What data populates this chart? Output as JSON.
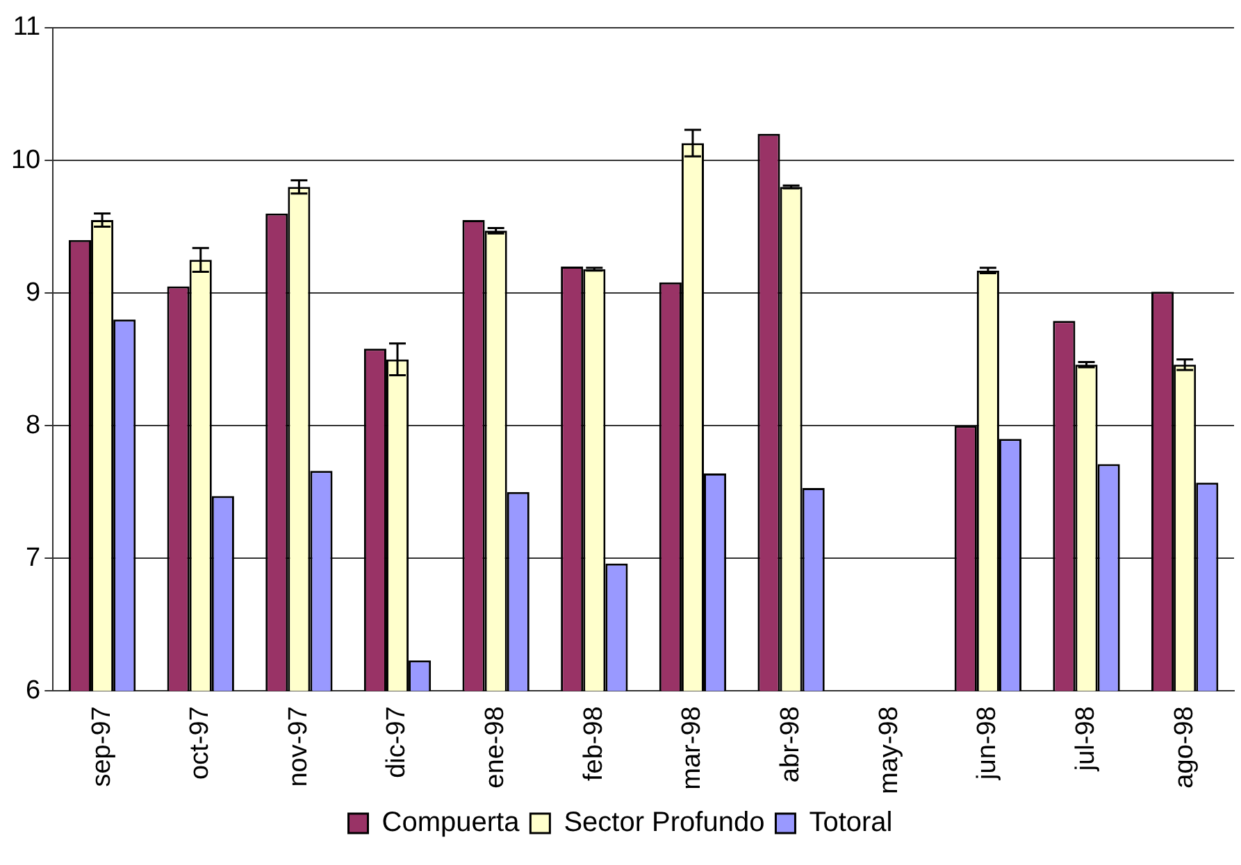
{
  "chart_data": {
    "type": "bar",
    "categories": [
      "sep-97",
      "oct-97",
      "nov-97",
      "dic-97",
      "ene-98",
      "feb-98",
      "mar-98",
      "abr-98",
      "may-98",
      "jun-98",
      "jul-98",
      "ago-98"
    ],
    "series": [
      {
        "name": "Compuerta",
        "color": "#993366",
        "values": [
          9.4,
          9.05,
          9.6,
          8.58,
          9.55,
          9.2,
          9.08,
          10.2,
          null,
          8.0,
          8.79,
          9.01
        ]
      },
      {
        "name": "Sector Profundo",
        "color": "#ffffcc",
        "values": [
          9.55,
          9.25,
          9.8,
          8.5,
          9.47,
          9.18,
          10.13,
          9.8,
          null,
          9.17,
          8.46,
          8.46
        ],
        "errors": [
          0.05,
          0.09,
          0.05,
          0.12,
          0.02,
          0.01,
          0.1,
          0.01,
          null,
          0.02,
          0.02,
          0.04
        ]
      },
      {
        "name": "Totoral",
        "color": "#9999ff",
        "values": [
          8.8,
          7.47,
          7.66,
          6.23,
          7.5,
          6.96,
          7.64,
          7.53,
          null,
          7.9,
          7.71,
          7.57
        ]
      }
    ],
    "ylim": [
      6,
      11
    ],
    "yticks": [
      6,
      7,
      8,
      9,
      10,
      11
    ],
    "grid": "y",
    "legend": "bottom"
  }
}
